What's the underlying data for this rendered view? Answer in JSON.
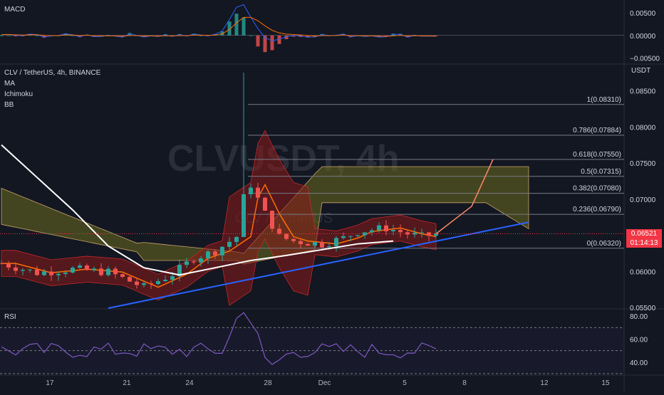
{
  "header": {
    "symbol": "CLV / TetherUS, 4h, BINANCE",
    "indicators": [
      "MA",
      "Ichimoku",
      "BB"
    ],
    "watermark": "CLVUSDT, 4h",
    "watermark_sub": "CLV / TetherUS"
  },
  "panes": {
    "macd": {
      "title": "MACD",
      "ticks": [
        "0.00500",
        "0.00000",
        "−0.00500"
      ]
    },
    "price": {
      "unit": "USDT",
      "ticks": [
        "0.08500",
        "0.08000",
        "0.07500",
        "0.07000",
        "0.06500",
        "0.06000",
        "0.05500"
      ]
    },
    "rsi": {
      "title": "RSI",
      "ticks": [
        "80.00",
        "60.00",
        "40.00"
      ]
    }
  },
  "last_price": {
    "value": "0.06521",
    "countdown": "01:14:13"
  },
  "time_axis": [
    "17",
    "21",
    "24",
    "28",
    "Dec",
    "5",
    "8",
    "12",
    "15"
  ],
  "fib_levels": [
    {
      "label": "1(0.08310)",
      "price": 0.0831
    },
    {
      "label": "0.786(0.07884)",
      "price": 0.07884
    },
    {
      "label": "0.618(0.07550)",
      "price": 0.0755
    },
    {
      "label": "0.5(0.07315)",
      "price": 0.07315
    },
    {
      "label": "0.382(0.07080)",
      "price": 0.0708
    },
    {
      "label": "0.236(0.06790)",
      "price": 0.0679
    },
    {
      "label": "0(0.06320)",
      "price": 0.0632
    }
  ],
  "colors": {
    "background": "#131722",
    "up": "#26a69a",
    "down": "#ef5350",
    "trendline": "#2962ff",
    "ma": "#ffffff",
    "bb_basis": "#ff6d00",
    "bb_fill": "#8b1a1a",
    "cloud": "#6b6b1f",
    "fib": "#787b86",
    "macd": "#2962ff",
    "signal": "#ff6d00",
    "rsi": "#7e57c2"
  },
  "chart_data": {
    "type": "line",
    "title": "CLV / TetherUS, 4h, BINANCE",
    "xlabel": "",
    "ylabel": "USDT",
    "ylim": [
      0.055,
      0.0885
    ],
    "x": [
      "17",
      "21",
      "24",
      "28",
      "Dec",
      "5",
      "8",
      "12",
      "15"
    ],
    "series": [
      {
        "name": "MA",
        "points": [
          [
            0,
            0.0775
          ],
          [
            5,
            0.073
          ],
          [
            10,
            0.0685
          ],
          [
            15,
            0.0635
          ],
          [
            20,
            0.0605
          ],
          [
            25,
            0.0595
          ],
          [
            30,
            0.0605
          ],
          [
            35,
            0.0615
          ],
          [
            40,
            0.0622
          ],
          [
            45,
            0.063
          ],
          [
            50,
            0.0638
          ],
          [
            55,
            0.0642
          ]
        ]
      },
      {
        "name": "Close",
        "points": [
          [
            0,
            0.0611
          ],
          [
            5,
            0.0598
          ],
          [
            10,
            0.0603
          ],
          [
            15,
            0.0599
          ],
          [
            20,
            0.0578
          ],
          [
            24,
            0.0596
          ],
          [
            27,
            0.0618
          ],
          [
            30,
            0.0628
          ],
          [
            33,
            0.0648
          ],
          [
            34,
            0.0702
          ],
          [
            35,
            0.072
          ],
          [
            37,
            0.068
          ],
          [
            39,
            0.0648
          ],
          [
            41,
            0.0642
          ],
          [
            45,
            0.0638
          ],
          [
            48,
            0.0646
          ],
          [
            50,
            0.0655
          ],
          [
            54,
            0.066
          ],
          [
            57,
            0.0652
          ],
          [
            59,
            0.0648
          ],
          [
            61,
            0.0652
          ]
        ]
      },
      {
        "name": "Ichimoku projection",
        "points": [
          [
            61,
            0.0652
          ],
          [
            66,
            0.069
          ],
          [
            69,
            0.0755
          ]
        ]
      }
    ],
    "trendline": [
      [
        15,
        0.0549
      ],
      [
        74,
        0.0668
      ]
    ],
    "macd_range": [
      -0.006,
      0.0075
    ],
    "rsi_range": [
      30,
      85
    ],
    "rsi_bands": [
      70,
      50,
      30
    ]
  }
}
